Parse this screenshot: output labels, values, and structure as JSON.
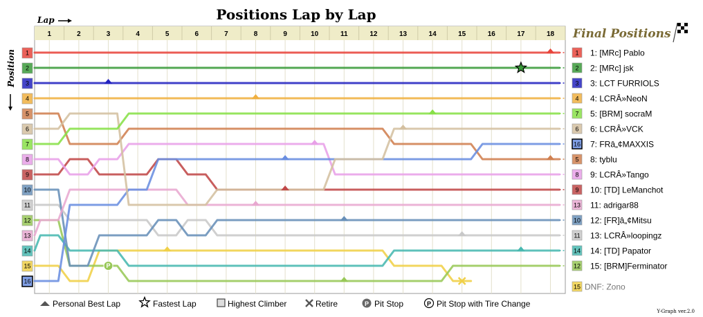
{
  "chart_data": {
    "type": "line",
    "title": "Positions Lap by Lap",
    "xlabel": "Lap",
    "ylabel": "Position",
    "laps": [
      1,
      2,
      3,
      4,
      5,
      6,
      7,
      8,
      9,
      10,
      11,
      12,
      13,
      14,
      15,
      16,
      17,
      18
    ],
    "start_positions": [
      "1",
      "2",
      "3",
      "4",
      "5",
      "6",
      "7",
      "8",
      "9",
      "10",
      "11",
      "12",
      "13",
      "14",
      "15",
      "16"
    ],
    "final_header": "Final Positions",
    "series": [
      {
        "name": "[MRc] Pablo",
        "color": "#e8453c",
        "start": 1,
        "positions": [
          1,
          1,
          1,
          1,
          1,
          1,
          1,
          1,
          1,
          1,
          1,
          1,
          1,
          1,
          1,
          1,
          1,
          1
        ],
        "final_label": "1: [MRc] Pablo",
        "final_badge": "1",
        "pb_lap": 17.5
      },
      {
        "name": "[MRc] jsk",
        "color": "#3a9b3a",
        "start": 2,
        "positions": [
          2,
          2,
          2,
          2,
          2,
          2,
          2,
          2,
          2,
          2,
          2,
          2,
          2,
          2,
          2,
          2,
          2,
          2
        ],
        "final_label": "2: [MRc] jsk",
        "final_badge": "2",
        "fastest_lap": 16.5
      },
      {
        "name": "LCT FURRIOLS",
        "color": "#2424c0",
        "start": 3,
        "positions": [
          3,
          3,
          3,
          3,
          3,
          3,
          3,
          3,
          3,
          3,
          3,
          3,
          3,
          3,
          3,
          3,
          3,
          3
        ],
        "final_label": "3: LCT FURRIOLS",
        "final_badge": "3",
        "pb_lap": 2.5
      },
      {
        "name": "LCRÂ»NeoN",
        "color": "#f0b040",
        "start": 4,
        "positions": [
          4,
          4,
          4,
          4,
          4,
          4,
          4,
          4,
          4,
          4,
          4,
          4,
          4,
          4,
          4,
          4,
          4,
          4
        ],
        "final_label": "4: LCRÂ»NeoN",
        "final_badge": "4",
        "pb_lap": 7.5
      },
      {
        "name": "[BRM] socraM",
        "color": "#88e048",
        "start": 7,
        "positions": [
          7,
          6,
          6,
          5,
          5,
          5,
          5,
          5,
          5,
          5,
          5,
          5,
          5,
          5,
          5,
          5,
          5,
          5
        ],
        "final_label": "5: [BRM] socraM",
        "final_badge": "7",
        "pb_lap": 13.5
      },
      {
        "name": "LCRÂ»VCK",
        "color": "#d4c0a0",
        "start": 6,
        "positions": [
          6,
          5,
          5,
          11,
          11,
          11,
          10,
          10,
          10,
          10,
          8,
          8,
          6,
          6,
          6,
          6,
          6,
          6
        ],
        "final_label": "6: LCRÂ»VCK",
        "final_badge": "6",
        "pb_lap": 12.5
      },
      {
        "name": "FRâ„¢MAXXIS",
        "color": "#6a8ee0",
        "start": 16,
        "positions": [
          16,
          11,
          11,
          10,
          8,
          8,
          8,
          8,
          8,
          8,
          8,
          8,
          8,
          8,
          8,
          7,
          7,
          7
        ],
        "final_label": "7: FRâ„¢MAXXIS",
        "final_badge": "16",
        "pb_lap": 8.5,
        "boxed": true
      },
      {
        "name": "tyblu",
        "color": "#d08050",
        "start": 5,
        "positions": [
          5,
          7,
          7,
          6,
          6,
          6,
          6,
          6,
          6,
          6,
          6,
          6,
          7,
          7,
          7,
          8,
          8,
          8
        ],
        "final_label": "8: tyblu",
        "final_badge": "5",
        "pb_lap": 17.5
      },
      {
        "name": "LCRÂ»Tango",
        "color": "#e8a0e8",
        "start": 8,
        "positions": [
          8,
          9,
          8,
          7,
          7,
          7,
          7,
          7,
          7,
          7,
          9,
          9,
          9,
          9,
          9,
          9,
          9,
          9
        ],
        "final_label": "9: LCRÂ»Tango",
        "final_badge": "8",
        "pb_lap": 9.5
      },
      {
        "name": "[TD] LeManchot",
        "color": "#c04848",
        "start": 9,
        "positions": [
          9,
          8,
          9,
          9,
          8,
          9,
          10,
          10,
          10,
          10,
          10,
          10,
          10,
          10,
          10,
          10,
          10,
          10
        ],
        "final_label": "10: [TD] LeManchot",
        "final_badge": "9",
        "pb_lap": 8.5
      },
      {
        "name": "adrigar88",
        "color": "#e8a8d0",
        "start": 13,
        "positions": [
          12,
          10,
          10,
          10,
          10,
          11,
          11,
          11,
          11,
          11,
          11,
          11,
          11,
          11,
          11,
          11,
          11,
          11
        ],
        "final_label": "11: adrigar88",
        "final_badge": "13",
        "pb_lap": 7.5
      },
      {
        "name": "[FR]â„¢Mitsu",
        "color": "#6890b8",
        "start": 10,
        "positions": [
          10,
          15,
          13,
          13,
          12,
          13,
          12,
          12,
          12,
          12,
          12,
          12,
          12,
          12,
          12,
          12,
          12,
          12
        ],
        "final_label": "12: [FR]â„¢Mitsu",
        "final_badge": "10",
        "pb_lap": 10.5
      },
      {
        "name": "LCRÂ»loopingz",
        "color": "#c8c8c8",
        "start": 11,
        "positions": [
          11,
          12,
          12,
          12,
          13,
          12,
          13,
          13,
          13,
          13,
          13,
          13,
          13,
          13,
          13,
          13,
          13,
          13
        ],
        "final_label": "13: LCRÂ»loopingz",
        "final_badge": "11",
        "pb_lap": 14.5
      },
      {
        "name": "[TD] Papator",
        "color": "#48b8b0",
        "start": 14,
        "positions": [
          13,
          14,
          14,
          15,
          15,
          15,
          15,
          15,
          15,
          15,
          15,
          15,
          14,
          14,
          14,
          14,
          14,
          14
        ],
        "final_label": "14: [TD] Papator",
        "final_badge": "14",
        "pb_lap": 16.5
      },
      {
        "name": "[BRM]Ferminator",
        "color": "#98c858",
        "start": 12,
        "positions": [
          12,
          15,
          15,
          16,
          16,
          16,
          16,
          16,
          16,
          16,
          16,
          16,
          16,
          16,
          15,
          15,
          15,
          15
        ],
        "final_label": "15: [BRM]Ferminator",
        "final_badge": "12",
        "pb_lap": 10.5,
        "pit_lap": 2.5
      },
      {
        "name": "Zono",
        "color": "#f0d048",
        "start": 15,
        "positions": [
          15,
          16,
          14,
          14,
          14,
          14,
          14,
          14,
          14,
          14,
          14,
          14,
          15,
          15,
          16
        ],
        "final_label": "DNF: Zono",
        "final_badge": "15",
        "dnf": true,
        "pb_lap": 4.5,
        "retire_lap": 14.5
      }
    ]
  },
  "legend": {
    "personal_best": "Personal Best Lap",
    "fastest": "Fastest Lap",
    "climber": "Highest Climber",
    "retire": "Retire",
    "pit": "Pit Stop",
    "pit_tire": "Pit Stop with Tire Change",
    "pit_glyph": "P"
  },
  "version": "Y-Graph ver.2.0"
}
